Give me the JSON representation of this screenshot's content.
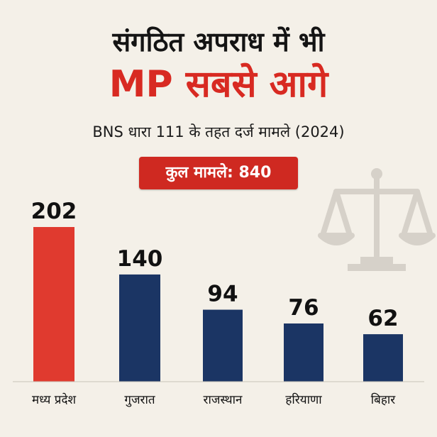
{
  "header": {
    "title_line1": "संगठित अपराध में भी",
    "title_line2": "MP सबसे आगे",
    "subtitle": "BNS धारा 111 के तहत दर्ज मामले (2024)",
    "total_badge": "कुल मामले: 840"
  },
  "colors": {
    "background": "#f4f0e8",
    "highlight_bar": "#e03a2f",
    "default_bar": "#1b3564",
    "accent_red": "#d82a22",
    "scale_icon": "#d6d1c9"
  },
  "icons": {
    "decorative": "justice-scale-icon"
  },
  "chart_data": {
    "type": "bar",
    "categories": [
      "मध्य प्रदेश",
      "गुजरात",
      "राजस्थान",
      "हरियाणा",
      "बिहार"
    ],
    "values": [
      202,
      140,
      94,
      76,
      62
    ],
    "data_labels": [
      "202",
      "140",
      "94",
      "76",
      "62"
    ],
    "highlight_index": 0,
    "title": "संगठित अपराध में भी MP सबसे आगे",
    "subtitle": "BNS धारा 111 के तहत दर्ज मामले (2024)",
    "xlabel": "",
    "ylabel": "",
    "ylim": [
      0,
      202
    ],
    "grid": false,
    "legend": "none"
  }
}
